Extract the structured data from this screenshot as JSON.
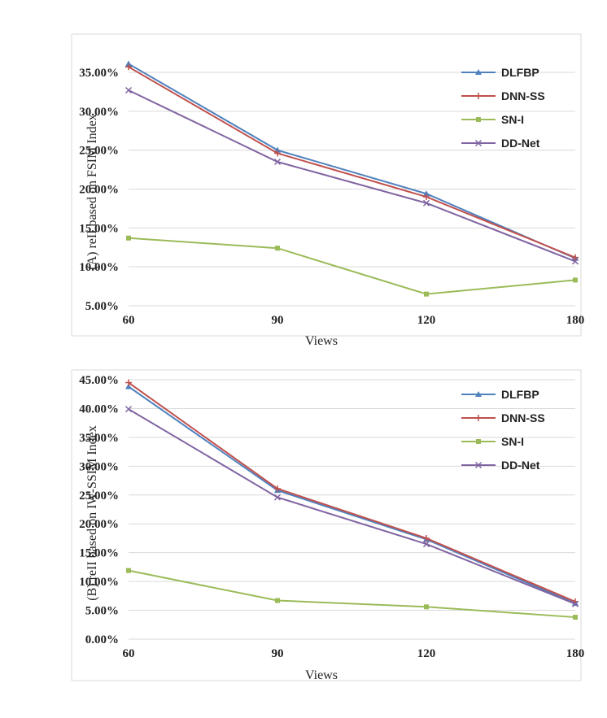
{
  "chart_data": [
    {
      "type": "line",
      "ylabel": "(A) reII based on FSIM Index",
      "xlabel": "Views",
      "categories": [
        "60",
        "90",
        "120",
        "180"
      ],
      "y_tick_labels": [
        "5.00%",
        "10.00%",
        "15.00%",
        "20.00%",
        "25.00%",
        "30.00%",
        "35.00%"
      ],
      "y_ticks": [
        5,
        10,
        15,
        20,
        25,
        30,
        35
      ],
      "ylim": [
        3,
        38
      ],
      "legend": "top-right",
      "grid": true,
      "series": [
        {
          "name": "DLFBP",
          "color": "#4f81bd",
          "marker": "triangle",
          "values": [
            36.1,
            25.0,
            19.4,
            11.1
          ]
        },
        {
          "name": "DNN-SS",
          "color": "#c0504d",
          "marker": "plus",
          "values": [
            35.7,
            24.6,
            19.0,
            11.2
          ]
        },
        {
          "name": "SN-I",
          "color": "#9bbb59",
          "marker": "square",
          "values": [
            13.7,
            12.4,
            6.5,
            8.3
          ]
        },
        {
          "name": "DD-Net",
          "color": "#8064a2",
          "marker": "x",
          "values": [
            32.7,
            23.5,
            18.2,
            10.7
          ]
        }
      ]
    },
    {
      "type": "line",
      "ylabel": "(B) reII based on IW-SSIM Index",
      "xlabel": "Views",
      "categories": [
        "60",
        "90",
        "120",
        "180"
      ],
      "y_tick_labels": [
        "0.00%",
        "5.00%",
        "10.00%",
        "15.00%",
        "20.00%",
        "25.00%",
        "30.00%",
        "35.00%",
        "40.00%",
        "45.00%"
      ],
      "y_ticks": [
        0,
        5,
        10,
        15,
        20,
        25,
        30,
        35,
        40,
        45
      ],
      "ylim": [
        0,
        45
      ],
      "legend": "top-right",
      "grid": true,
      "series": [
        {
          "name": "DLFBP",
          "color": "#4f81bd",
          "marker": "triangle",
          "values": [
            43.8,
            25.8,
            17.3,
            6.2
          ]
        },
        {
          "name": "DNN-SS",
          "color": "#c0504d",
          "marker": "plus",
          "values": [
            44.5,
            26.1,
            17.5,
            6.5
          ]
        },
        {
          "name": "SN-I",
          "color": "#9bbb59",
          "marker": "square",
          "values": [
            11.9,
            6.7,
            5.6,
            3.8
          ]
        },
        {
          "name": "DD-Net",
          "color": "#8064a2",
          "marker": "x",
          "values": [
            39.9,
            24.6,
            16.5,
            6.1
          ]
        }
      ]
    }
  ]
}
